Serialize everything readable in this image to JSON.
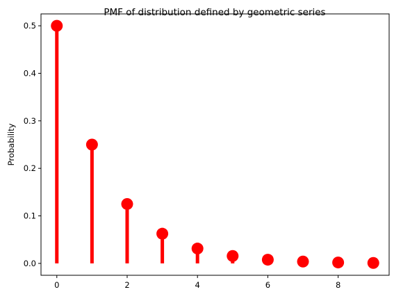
{
  "chart_data": {
    "type": "stem",
    "title": "PMF of distribution defined by geometric series",
    "xlabel": "",
    "ylabel": "Probability",
    "x": [
      0,
      1,
      2,
      3,
      4,
      5,
      6,
      7,
      8,
      9
    ],
    "y": [
      0.5,
      0.25,
      0.125,
      0.0625,
      0.03125,
      0.015625,
      0.0078125,
      0.00390625,
      0.001953125,
      0.0009765625
    ],
    "xlim": [
      -0.45,
      9.45
    ],
    "ylim": [
      -0.025,
      0.525
    ],
    "xticks": [
      0,
      2,
      4,
      6,
      8
    ],
    "xtick_labels": [
      "0",
      "2",
      "4",
      "6",
      "8"
    ],
    "yticks": [
      0.0,
      0.1,
      0.2,
      0.3,
      0.4,
      0.5
    ],
    "ytick_labels": [
      "0.0",
      "0.1",
      "0.2",
      "0.3",
      "0.4",
      "0.5"
    ],
    "color": "#ff0000",
    "grid": false,
    "legend": "none"
  }
}
